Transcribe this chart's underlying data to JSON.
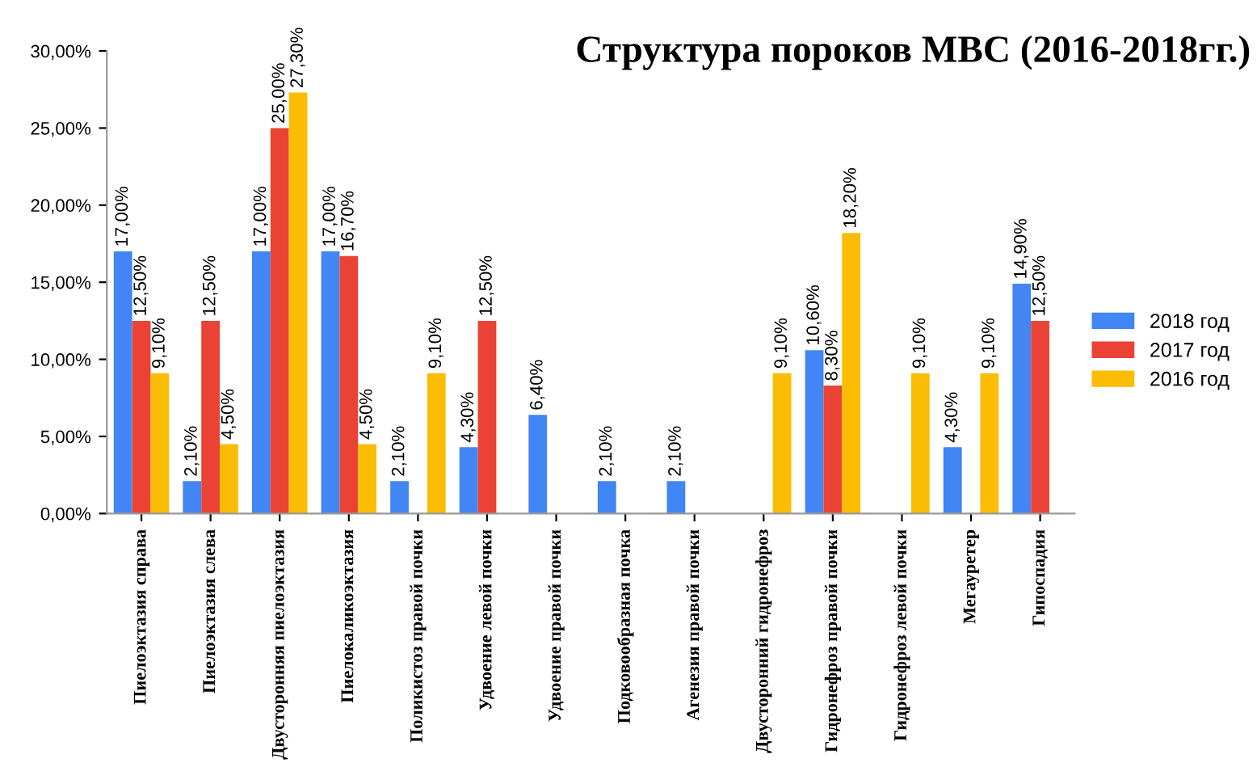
{
  "chart_data": {
    "type": "bar",
    "title": "Структура пороков МВС (2016-2018гг.)",
    "categories": [
      "Пиелоэктазия справа",
      "Пиелоэктазия слева",
      "Двусторонняя пиелоэктазия",
      "Пиелокаликоэктазия",
      "Поликистоз правой почки",
      "Удвоение левой почки",
      "Удвоение правой почки",
      "Подковообразная почка",
      "Агенезия правой почки",
      "Двусторонний гидронефроз",
      "Гидронефроз правой почки",
      "Гидронефроз левой почки",
      "Мегауретер",
      "Гипоспадия"
    ],
    "series": [
      {
        "name": "2018 год",
        "color": "#4285f4",
        "values": [
          17,
          2.1,
          17,
          17,
          2.1,
          4.3,
          6.4,
          2.1,
          2.1,
          null,
          10.6,
          null,
          4.3,
          14.9
        ],
        "value_labels": [
          "17,00%",
          "2,10%",
          "17,00%",
          "17,00%",
          "2,10%",
          "4,30%",
          "6,40%",
          "2,10%",
          "2,10%",
          null,
          "10,60%",
          null,
          "4,30%",
          "14,90%"
        ]
      },
      {
        "name": "2017 год",
        "color": "#ea4335",
        "values": [
          12.5,
          12.5,
          25,
          16.7,
          null,
          12.5,
          null,
          null,
          null,
          null,
          8.3,
          null,
          null,
          12.5
        ],
        "value_labels": [
          "12,50%",
          "12,50%",
          "25,00%",
          "16,70%",
          null,
          "12,50%",
          null,
          null,
          null,
          null,
          "8,30%",
          null,
          null,
          "12,50%"
        ]
      },
      {
        "name": "2016 год",
        "color": "#fbbc04",
        "values": [
          9.1,
          4.5,
          27.3,
          4.5,
          9.1,
          null,
          null,
          null,
          null,
          9.1,
          18.2,
          9.1,
          9.1,
          null
        ],
        "value_labels": [
          "9,10%",
          "4,50%",
          "27,30%",
          "4,50%",
          "9,10%",
          null,
          null,
          null,
          null,
          "9,10%",
          "18,20%",
          "9,10%",
          "9,10%",
          null
        ]
      }
    ],
    "ylim": [
      0,
      30
    ],
    "yticks": [
      {
        "value": 0,
        "label": "0,00%"
      },
      {
        "value": 5,
        "label": "5,00%"
      },
      {
        "value": 10,
        "label": "10,00%"
      },
      {
        "value": 15,
        "label": "15,00%"
      },
      {
        "value": 20,
        "label": "20,00%"
      },
      {
        "value": 25,
        "label": "25,00%"
      },
      {
        "value": 30,
        "label": "30,00%"
      }
    ],
    "grid": false,
    "legend": "right"
  }
}
